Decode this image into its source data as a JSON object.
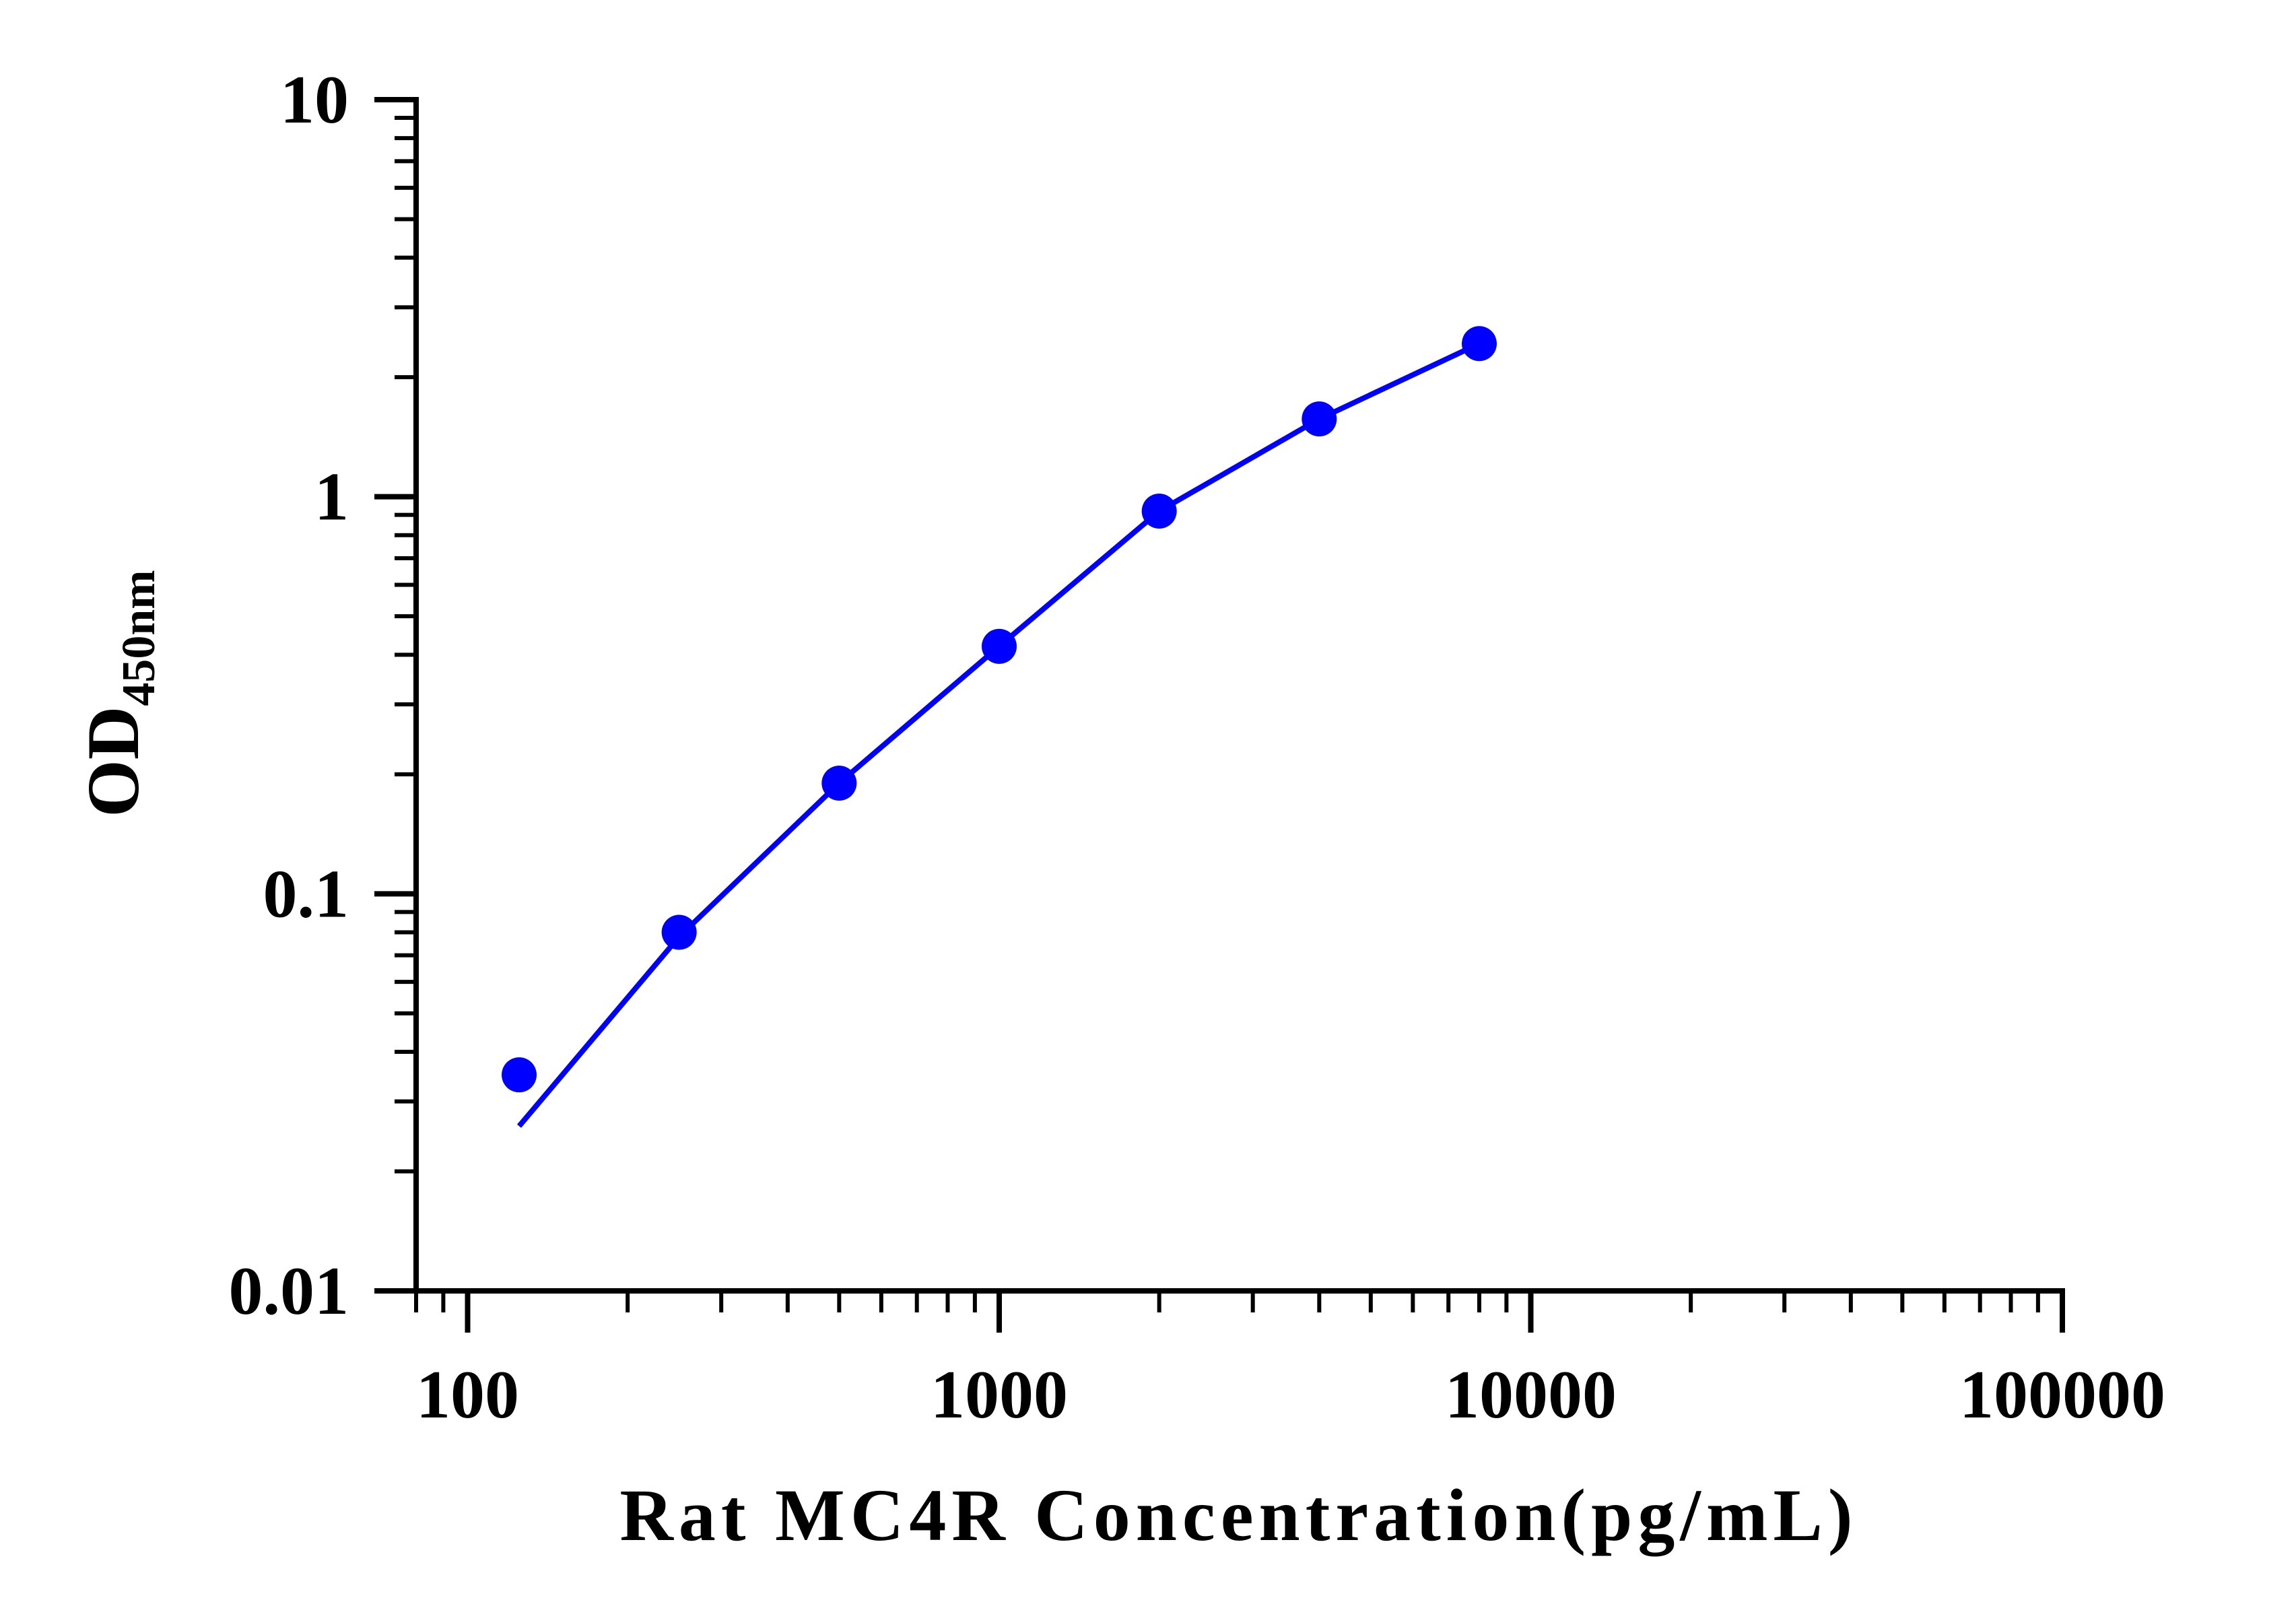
{
  "chart_data": {
    "type": "scatter",
    "title": "",
    "xlabel": "Rat MC4R Concentration(pg/mL)",
    "ylabel": "OD",
    "ylabel_subscript": "450nm",
    "x_scale": "log",
    "y_scale": "log",
    "xlim": [
      80,
      100000
    ],
    "ylim": [
      0.01,
      10
    ],
    "x_tick_labels": [
      "100",
      "1000",
      "10000",
      "100000"
    ],
    "y_tick_labels": [
      "0.01",
      "0.1",
      "1",
      "10"
    ],
    "grid": false,
    "legend": "none",
    "series": [
      {
        "points_x": [
          125,
          250,
          500,
          1000,
          2000,
          4000,
          8000
        ],
        "points_y": [
          0.035,
          0.08,
          0.19,
          0.42,
          0.92,
          1.57,
          2.43
        ],
        "fit_x": [
          125,
          250,
          500,
          1000,
          2000,
          4000,
          8000
        ],
        "fit_y": [
          0.026,
          0.078,
          0.19,
          0.42,
          0.92,
          1.57,
          2.43
        ],
        "color": "#0000ff"
      }
    ]
  }
}
